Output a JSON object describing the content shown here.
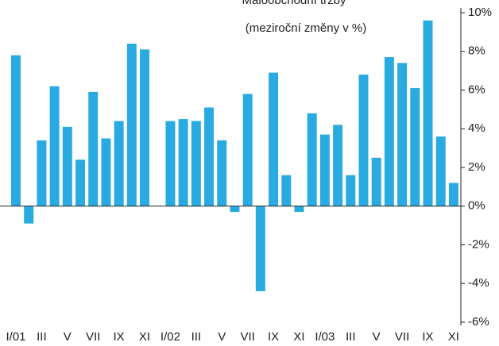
{
  "chart_data": {
    "type": "bar",
    "title": "Maloobchodní tržby",
    "subtitle": "(meziroční změny v %)",
    "categories": [
      "I/01",
      null,
      "III",
      null,
      "V",
      null,
      "VII",
      null,
      "IX",
      null,
      "XI",
      null,
      "I/02",
      null,
      "III",
      null,
      "V",
      null,
      "VII",
      null,
      "IX",
      null,
      "XI",
      null,
      "I/03",
      null,
      "III",
      null,
      "V",
      null,
      "VII",
      null,
      "IX",
      null,
      "XI"
    ],
    "values": [
      7.8,
      -0.9,
      3.4,
      6.2,
      4.1,
      2.4,
      5.9,
      3.5,
      4.4,
      8.4,
      8.1,
      0,
      4.4,
      4.5,
      4.4,
      5.1,
      3.4,
      -0.3,
      5.8,
      -4.4,
      6.9,
      1.6,
      -0.3,
      4.8,
      3.7,
      4.2,
      1.6,
      6.8,
      2.5,
      7.7,
      7.4,
      6.1,
      9.6,
      3.6,
      1.2
    ],
    "color": "#29abe2",
    "ylim": [
      -6,
      10
    ],
    "yticks": [
      {
        "value": -6,
        "label": "-6%"
      },
      {
        "value": -4,
        "label": "-4%"
      },
      {
        "value": -2,
        "label": "-2%"
      },
      {
        "value": 0,
        "label": "0%"
      },
      {
        "value": 2,
        "label": "2%"
      },
      {
        "value": 4,
        "label": "4%"
      },
      {
        "value": 6,
        "label": "6%"
      },
      {
        "value": 8,
        "label": "8%"
      },
      {
        "value": 10,
        "label": "10%"
      }
    ]
  }
}
